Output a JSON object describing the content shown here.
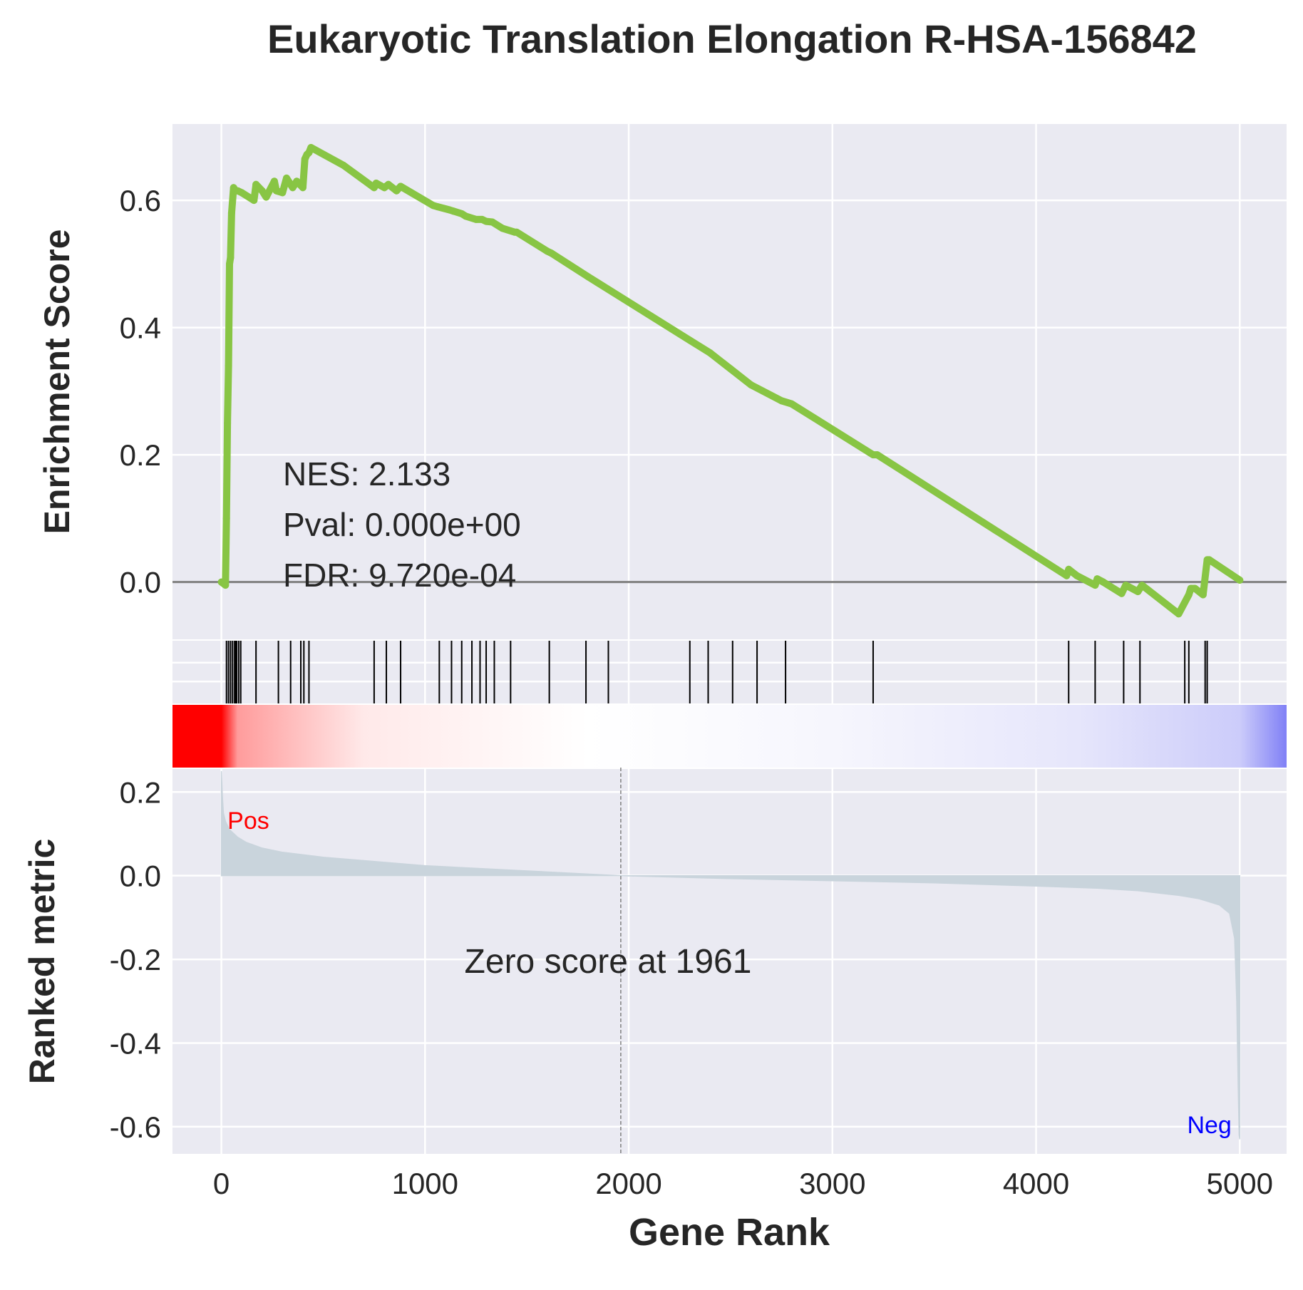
{
  "chart_data": {
    "type": "line",
    "title": "Eukaryotic Translation Elongation R-HSA-156842",
    "xlabel": "Gene Rank",
    "xlim": [
      -240,
      5230
    ],
    "xticks": [
      0,
      1000,
      2000,
      3000,
      4000,
      5000
    ],
    "xtick_labels": [
      "0",
      "1000",
      "2000",
      "3000",
      "4000",
      "5000"
    ],
    "colors": {
      "background": "#eaeaf2",
      "grid": "#ffffff",
      "es_line": "#88c544",
      "zero_line": "#808080",
      "hits": "#000000",
      "ranked_fill": "#c9d4dc",
      "pos_label": "#ff0000",
      "neg_label": "#0000ff",
      "text": "#262626"
    },
    "enrichment_panel": {
      "ylabel": "Enrichment Score",
      "ylim": [
        -0.09,
        0.72
      ],
      "yticks": [
        0.0,
        0.2,
        0.4,
        0.6
      ],
      "ytick_labels": [
        "0.0",
        "0.2",
        "0.4",
        "0.6"
      ],
      "zero_line": 0.0,
      "series": [
        {
          "x": [
            0,
            20,
            25,
            30,
            35,
            40,
            45,
            50,
            60,
            70,
            80,
            100,
            160,
            170,
            200,
            220,
            260,
            270,
            300,
            320,
            350,
            370,
            400,
            410,
            420,
            430,
            440,
            600,
            750,
            760,
            800,
            820,
            860,
            880,
            1040,
            1060,
            1120,
            1140,
            1180,
            1200,
            1250,
            1280,
            1300,
            1330,
            1380,
            1440,
            1450,
            1600,
            1620,
            1800,
            1850,
            2300,
            2400,
            2500,
            2600,
            2750,
            2800,
            3200,
            3220,
            4150,
            4160,
            4200,
            4290,
            4300,
            4330,
            4420,
            4440,
            4500,
            4520,
            4700,
            4750,
            4760,
            4780,
            4820,
            4840,
            4850,
            5000
          ],
          "y": [
            0.0,
            -0.005,
            0.1,
            0.25,
            0.34,
            0.5,
            0.51,
            0.58,
            0.62,
            0.615,
            0.615,
            0.612,
            0.6,
            0.625,
            0.615,
            0.605,
            0.63,
            0.615,
            0.612,
            0.635,
            0.62,
            0.63,
            0.62,
            0.665,
            0.672,
            0.675,
            0.683,
            0.655,
            0.62,
            0.627,
            0.62,
            0.625,
            0.615,
            0.622,
            0.592,
            0.59,
            0.585,
            0.583,
            0.579,
            0.575,
            0.57,
            0.57,
            0.567,
            0.566,
            0.556,
            0.55,
            0.55,
            0.52,
            0.517,
            0.48,
            0.47,
            0.38,
            0.36,
            0.335,
            0.31,
            0.285,
            0.28,
            0.2,
            0.2,
            0.01,
            0.02,
            0.01,
            -0.005,
            0.005,
            0.0,
            -0.018,
            -0.005,
            -0.015,
            -0.005,
            -0.05,
            -0.02,
            -0.01,
            -0.01,
            -0.02,
            0.035,
            0.035,
            0.003
          ]
        }
      ],
      "annotations": [
        "NES: 2.133",
        "Pval: 0.000e+00",
        "FDR: 9.720e-04"
      ]
    },
    "hits_panel": {
      "hit_ranks": [
        25,
        35,
        45,
        55,
        65,
        70,
        75,
        85,
        95,
        170,
        280,
        340,
        390,
        405,
        430,
        750,
        810,
        880,
        1070,
        1130,
        1180,
        1230,
        1270,
        1300,
        1340,
        1420,
        1610,
        1790,
        1900,
        2300,
        2390,
        2510,
        2630,
        2770,
        3200,
        4160,
        4290,
        4430,
        4510,
        4730,
        4750,
        4830,
        4840
      ]
    },
    "heatmap_strip": {
      "gradient_stops": [
        {
          "x": 0,
          "color": "#ff0000"
        },
        {
          "x": 80,
          "color": "#ff9c9c"
        },
        {
          "x": 700,
          "color": "#ffe9e9"
        },
        {
          "x": 1800,
          "color": "#ffffff"
        },
        {
          "x": 3000,
          "color": "#f6f6fd"
        },
        {
          "x": 4200,
          "color": "#e6e6fb"
        },
        {
          "x": 5000,
          "color": "#ccccfa"
        },
        {
          "x": 5230,
          "color": "#8080f6"
        }
      ]
    },
    "ranked_panel": {
      "ylabel": "Ranked metric",
      "ylim": [
        -0.665,
        0.255
      ],
      "yticks": [
        -0.6,
        -0.4,
        -0.2,
        0.0,
        0.2
      ],
      "ytick_labels": [
        "-0.6",
        "-0.4",
        "-0.2",
        "0.0",
        "0.2"
      ],
      "x": [
        0,
        5,
        10,
        20,
        40,
        80,
        120,
        200,
        300,
        500,
        700,
        1000,
        1400,
        1961,
        2500,
        3000,
        3500,
        4000,
        4300,
        4500,
        4700,
        4800,
        4900,
        4950,
        4975,
        4985,
        4992,
        4997,
        5000
      ],
      "y": [
        0.25,
        0.19,
        0.15,
        0.13,
        0.11,
        0.092,
        0.08,
        0.066,
        0.056,
        0.044,
        0.036,
        0.024,
        0.014,
        0.0,
        -0.007,
        -0.012,
        -0.017,
        -0.025,
        -0.03,
        -0.036,
        -0.047,
        -0.055,
        -0.07,
        -0.09,
        -0.15,
        -0.3,
        -0.5,
        -0.62,
        -0.63
      ],
      "zero_cross_rank": 1961,
      "zero_cross_label": "Zero score at 1961",
      "pos_label": "Pos",
      "neg_label": "Neg"
    }
  }
}
